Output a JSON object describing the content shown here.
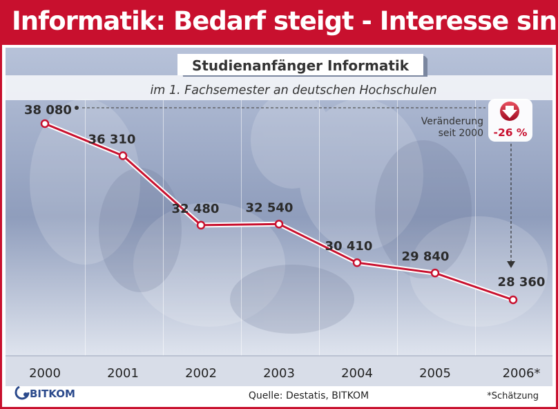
{
  "header": {
    "title": "Informatik: Bedarf steigt - Interesse sinkt"
  },
  "chart_data": {
    "type": "line",
    "title": "Studienanfänger Informatik",
    "subtitle": "im 1. Fachsemester an deutschen Hochschulen",
    "categories": [
      "2000",
      "2001",
      "2002",
      "2003",
      "2004",
      "2005",
      "2006*"
    ],
    "values": [
      38080,
      36310,
      32480,
      32540,
      30410,
      29840,
      28360
    ],
    "value_labels": [
      "38 080",
      "36 310",
      "32 480",
      "32 540",
      "30 410",
      "29 840",
      "28 360"
    ],
    "grid": "vertical lines",
    "colors": {
      "line": "#c8102e",
      "accent": "#c8102e"
    },
    "annotation": {
      "label_line1": "Veränderung",
      "label_line2": "seit 2000",
      "change": "-26 %",
      "icon": "down-arrow-icon"
    }
  },
  "footer": {
    "logo_text": "BITKOM",
    "source": "Quelle: Destatis, BITKOM",
    "footnote": "*Schätzung"
  }
}
